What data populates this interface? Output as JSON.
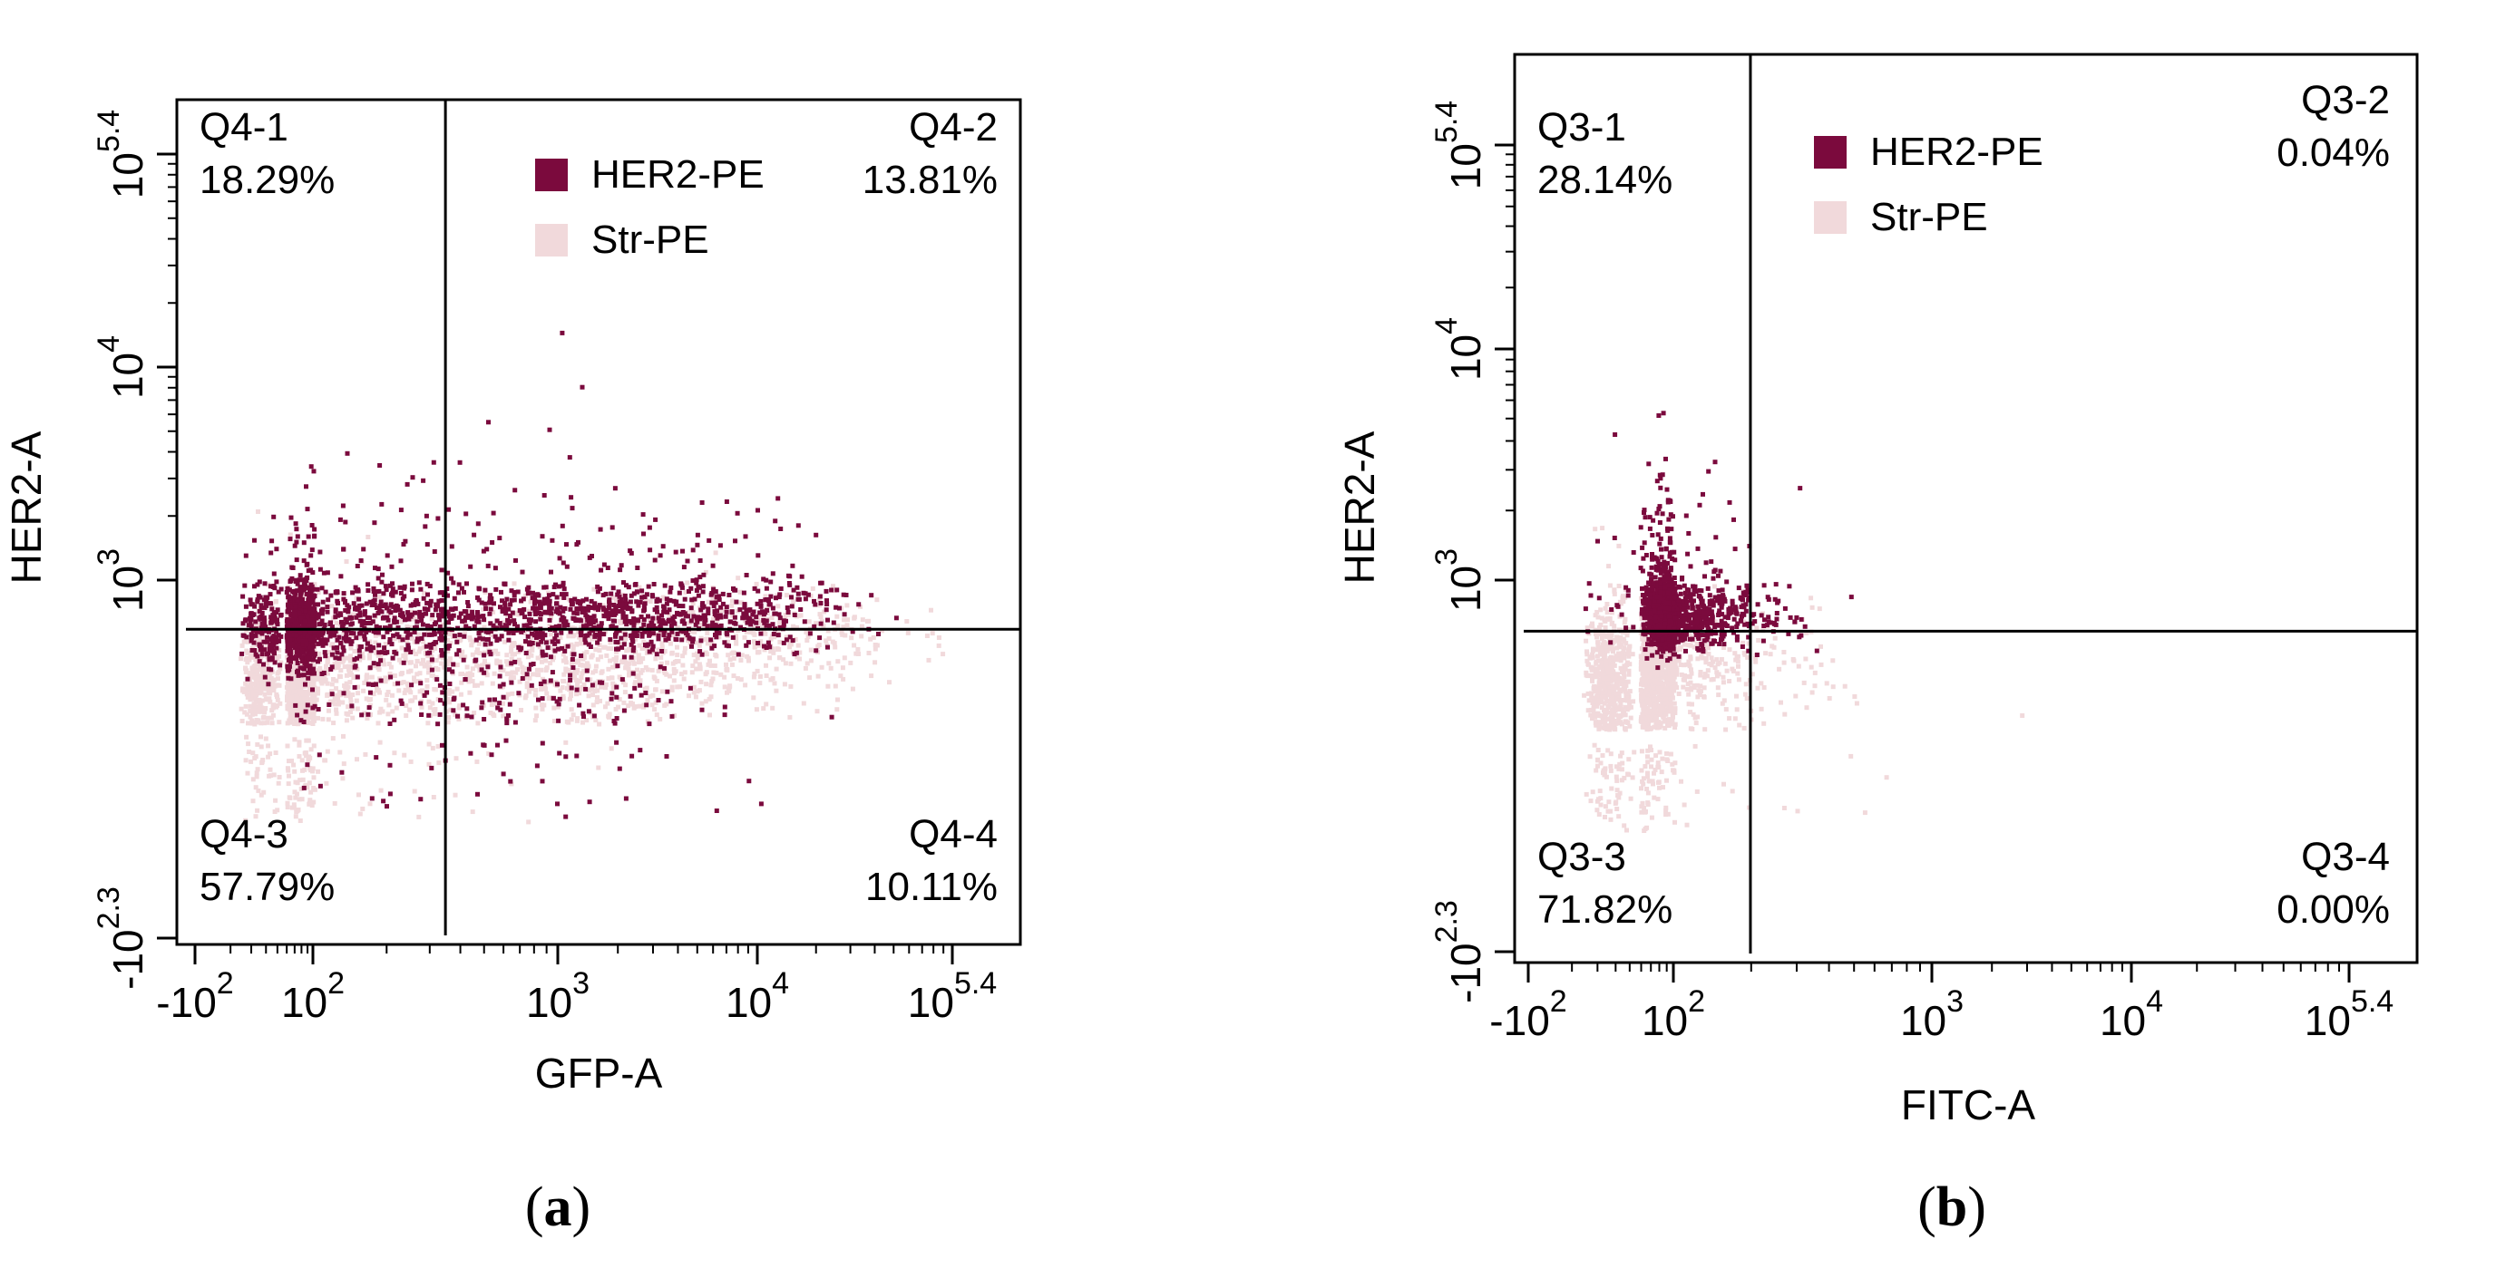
{
  "colors": {
    "her2_pe": "#7b0a3d",
    "str_pe": "#f1d9db",
    "axis": "#000000"
  },
  "chart_data": [
    {
      "type": "scatter",
      "panel_label": "a",
      "xlabel": "GFP-A",
      "ylabel": "HER2-A",
      "x_ticks": [
        {
          "base": "-10",
          "exp": "2",
          "value": -100
        },
        {
          "base": "10",
          "exp": "2",
          "value": 100
        },
        {
          "base": "10",
          "exp": "3",
          "value": 1000
        },
        {
          "base": "10",
          "exp": "4",
          "value": 10000
        },
        {
          "base": "10",
          "exp": "5.4",
          "value": 251189
        }
      ],
      "y_ticks": [
        {
          "base": "-10",
          "exp": "2.3",
          "value": -200
        },
        {
          "base": "10",
          "exp": "3",
          "value": 1000
        },
        {
          "base": "10",
          "exp": "4",
          "value": 10000
        },
        {
          "base": "10",
          "exp": "5.4",
          "value": 251189
        }
      ],
      "legend": [
        {
          "name": "HER2-PE",
          "color_key": "her2_pe"
        },
        {
          "name": "Str-PE",
          "color_key": "str_pe"
        }
      ],
      "gate": {
        "x": 350,
        "y": 250
      },
      "quadrants": [
        {
          "name": "Q4-1",
          "percent": "18.29%"
        },
        {
          "name": "Q4-2",
          "percent": "13.81%"
        },
        {
          "name": "Q4-3",
          "percent": "57.79%"
        },
        {
          "name": "Q4-4",
          "percent": "10.11%"
        }
      ],
      "series": [
        {
          "name": "Str-PE",
          "color_key": "str_pe",
          "populations": [
            {
              "x_log": 1.55,
              "y_log": 1.75,
              "sx": 0.55,
              "sy": 0.45,
              "n": 1400
            },
            {
              "x_log": 3.0,
              "y_log": 2.0,
              "sx": 0.65,
              "sy": 0.35,
              "n": 900
            },
            {
              "x_log": 4.0,
              "y_log": 2.4,
              "sx": 0.5,
              "sy": 0.3,
              "n": 250
            }
          ]
        },
        {
          "name": "HER2-PE",
          "color_key": "her2_pe",
          "populations": [
            {
              "x_log": 1.65,
              "y_log": 2.45,
              "sx": 0.45,
              "sy": 0.25,
              "n": 900
            },
            {
              "x_log": 3.1,
              "y_log": 2.55,
              "sx": 0.6,
              "sy": 0.22,
              "n": 900
            },
            {
              "x_log": 2.4,
              "y_log": 2.9,
              "sx": 0.7,
              "sy": 0.35,
              "n": 260
            },
            {
              "x_log": 2.7,
              "y_log": 1.5,
              "sx": 0.55,
              "sy": 0.35,
              "n": 200
            },
            {
              "x_log": 3.9,
              "y_log": 2.9,
              "sx": 0.35,
              "sy": 0.22,
              "n": 120
            }
          ]
        }
      ]
    },
    {
      "type": "scatter",
      "panel_label": "b",
      "xlabel": "FITC-A",
      "ylabel": "HER2-A",
      "x_ticks": [
        {
          "base": "-10",
          "exp": "2",
          "value": -100
        },
        {
          "base": "10",
          "exp": "2",
          "value": 100
        },
        {
          "base": "10",
          "exp": "3",
          "value": 1000
        },
        {
          "base": "10",
          "exp": "4",
          "value": 10000
        },
        {
          "base": "10",
          "exp": "5.4",
          "value": 251189
        }
      ],
      "y_ticks": [
        {
          "base": "-10",
          "exp": "2.3",
          "value": -200
        },
        {
          "base": "10",
          "exp": "3",
          "value": 1000
        },
        {
          "base": "10",
          "exp": "4",
          "value": 10000
        },
        {
          "base": "10",
          "exp": "5.4",
          "value": 251189
        }
      ],
      "legend": [
        {
          "name": "HER2-PE",
          "color_key": "her2_pe"
        },
        {
          "name": "Str-PE",
          "color_key": "str_pe"
        }
      ],
      "gate": {
        "x": 200,
        "y": 250
      },
      "quadrants": [
        {
          "name": "Q3-1",
          "percent": "28.14%"
        },
        {
          "name": "Q3-2",
          "percent": "0.04%"
        },
        {
          "name": "Q3-3",
          "percent": "71.82%"
        },
        {
          "name": "Q3-4",
          "percent": "0.00%"
        }
      ],
      "series": [
        {
          "name": "Str-PE",
          "color_key": "str_pe",
          "populations": [
            {
              "x_log": 1.3,
              "y_log": 1.8,
              "sx": 0.5,
              "sy": 0.45,
              "n": 1500
            },
            {
              "x_log": 1.9,
              "y_log": 2.2,
              "sx": 0.25,
              "sy": 0.3,
              "n": 300
            }
          ]
        },
        {
          "name": "HER2-PE",
          "color_key": "her2_pe",
          "populations": [
            {
              "x_log": 1.85,
              "y_log": 2.6,
              "sx": 0.22,
              "sy": 0.18,
              "n": 1500
            },
            {
              "x_log": 1.7,
              "y_log": 2.95,
              "sx": 0.3,
              "sy": 0.3,
              "n": 250
            }
          ]
        }
      ]
    }
  ]
}
